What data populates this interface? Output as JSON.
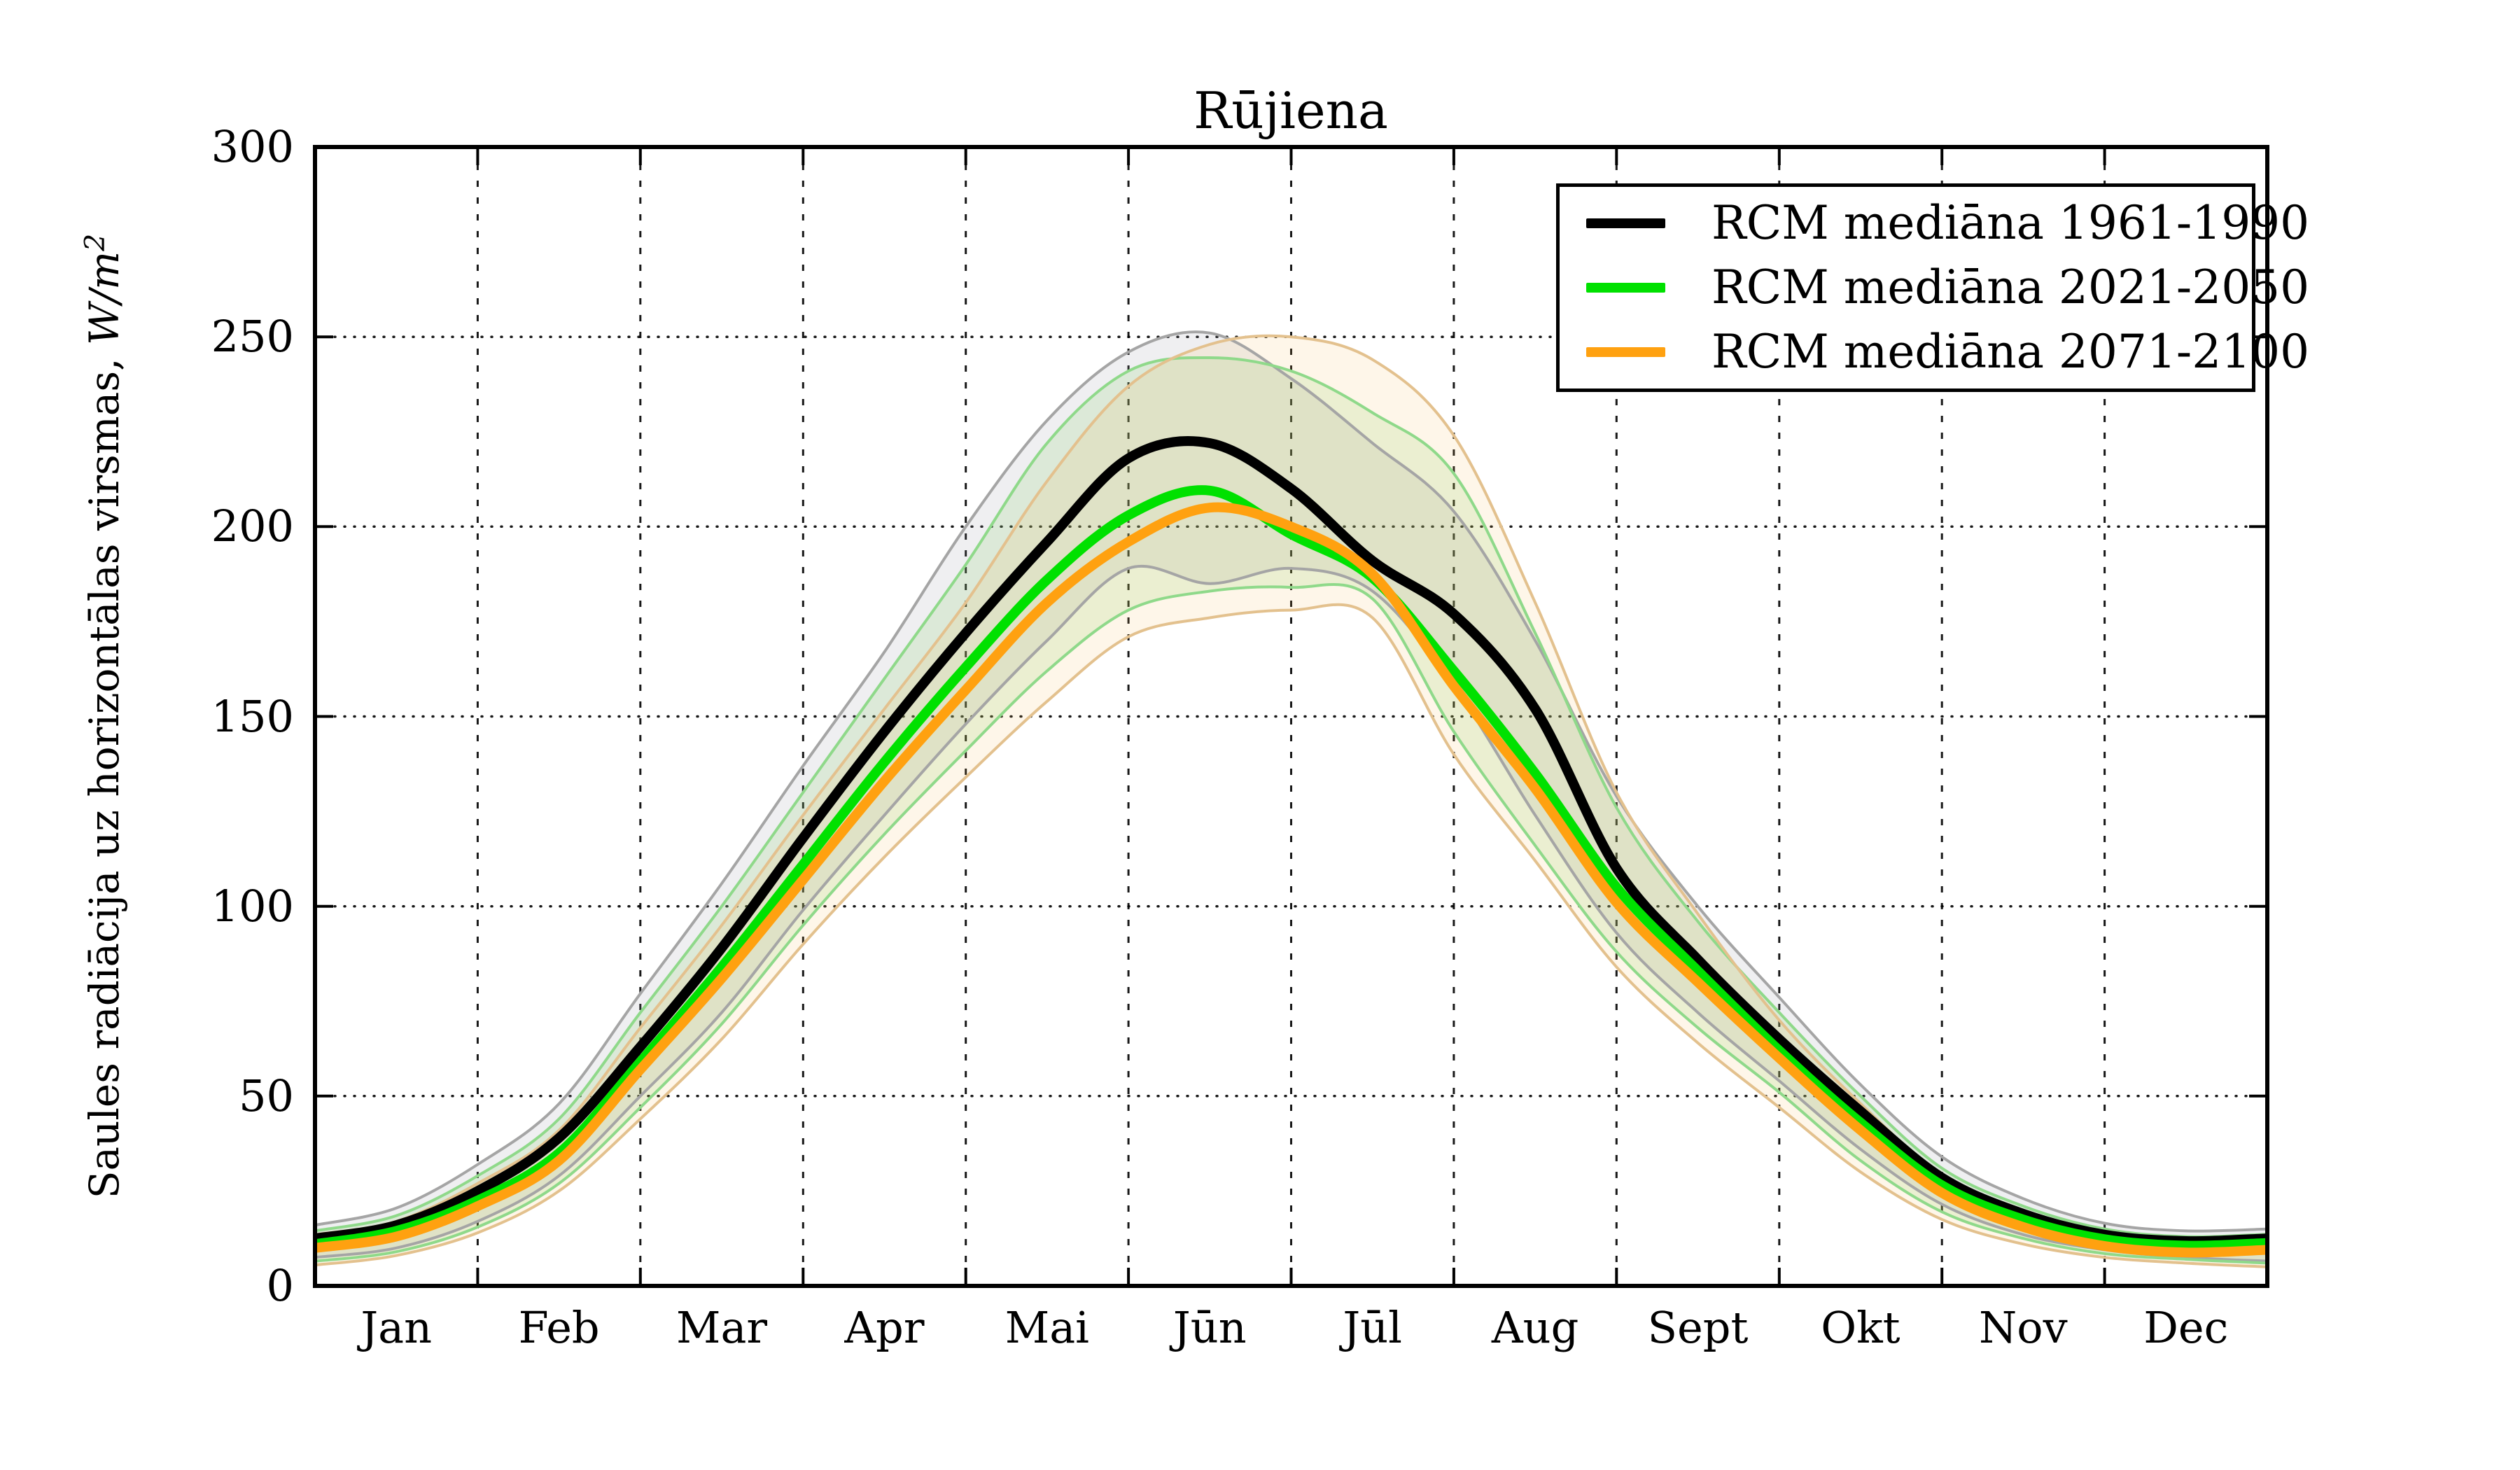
{
  "title": "Rūjiena",
  "ylabel": {
    "prefix": "Saules radiācija uz horizontālas virsmas, ",
    "math": "W/m",
    "sup": "2"
  },
  "legend": {
    "items": [
      {
        "label": "RCM mediāna 1961-1990",
        "color": "#000000"
      },
      {
        "label": "RCM mediāna 2021-2050",
        "color": "#00e100"
      },
      {
        "label": "RCM mediāna 2071-2100",
        "color": "#ffa110"
      }
    ]
  },
  "chart_data": {
    "type": "line",
    "title": "Rūjiena",
    "xlabel": "",
    "ylabel": "Saules radiācija uz horizontālas virsmas, W/m²",
    "ylim": [
      0,
      300
    ],
    "yticks": [
      0,
      50,
      100,
      150,
      200,
      250,
      300
    ],
    "x_months": [
      "Jan",
      "Feb",
      "Mar",
      "Apr",
      "Mai",
      "Jūn",
      "Jūl",
      "Aug",
      "Sept",
      "Okt",
      "Nov",
      "Dec"
    ],
    "grid": "dotted black gridlines at every month boundary and every 50 W/m²; legend upper right",
    "x_unit": "months, 0 = start of Jan, 12 = end of Dec, sampled every half month",
    "x": [
      0,
      0.5,
      1,
      1.5,
      2,
      2.5,
      3,
      3.5,
      4,
      4.5,
      5,
      5.5,
      6,
      6.5,
      7,
      7.5,
      8,
      8.5,
      9,
      9.5,
      10,
      10.5,
      11,
      11.5,
      12
    ],
    "series": [
      {
        "name": "RCM mediāna 1961-1990",
        "color": "#000000",
        "band_line_color": "#a5a5a5",
        "band_fill": "rgba(145,145,155,0.14)",
        "median": [
          12.5,
          16,
          25,
          39,
          63,
          89,
          118,
          146,
          172,
          196,
          218,
          222,
          210,
          191,
          177,
          152,
          110,
          86,
          65,
          46,
          28.5,
          19,
          13.5,
          11.8,
          12.5
        ],
        "lower": [
          7.5,
          10,
          17,
          29,
          50,
          72,
          99,
          124,
          148,
          170,
          189,
          185,
          189,
          183,
          158,
          124,
          93,
          72,
          54,
          36,
          21.5,
          13.5,
          9.5,
          7.5,
          6.5
        ],
        "upper": [
          16,
          20.5,
          32,
          48,
          77,
          106,
          137,
          167,
          200,
          228,
          246,
          251,
          239,
          222,
          204,
          170,
          129,
          100,
          76,
          53,
          34,
          23,
          16.5,
          14.5,
          15
        ]
      },
      {
        "name": "RCM mediāna 2021-2050",
        "color": "#00e100",
        "band_line_color": "#8fd98a",
        "band_fill": "rgba(125,205,90,0.16)",
        "median": [
          11,
          14.5,
          22.5,
          35,
          59,
          84,
          111,
          138,
          163,
          186,
          203,
          209.5,
          198,
          186.5,
          162,
          135,
          105,
          83,
          62,
          43,
          26.5,
          17.5,
          12.3,
          10.6,
          11.3
        ],
        "lower": [
          6.5,
          9,
          15.5,
          27,
          47,
          69,
          95,
          119,
          141,
          162,
          178,
          183,
          184,
          181,
          146,
          116,
          88,
          68,
          51,
          33,
          19.5,
          12.5,
          8.5,
          7,
          6
        ],
        "upper": [
          14.5,
          18.5,
          29,
          44,
          72,
          100,
          130,
          160,
          190,
          222,
          241,
          244.5,
          241,
          230,
          214,
          172,
          126,
          96,
          72,
          50,
          31,
          21,
          15,
          13,
          13.6
        ]
      },
      {
        "name": "RCM mediāna 2071-2100",
        "color": "#ffa110",
        "band_line_color": "#e3c18e",
        "band_fill": "rgba(246,178,75,0.12)",
        "median": [
          10,
          13,
          21,
          33,
          57,
          81,
          107,
          133,
          157,
          180,
          196,
          205,
          200,
          187.5,
          158,
          131,
          101,
          80,
          60,
          41,
          24.5,
          15.5,
          10.5,
          8.8,
          9.5
        ],
        "lower": [
          5.5,
          8,
          14,
          25,
          44,
          65,
          90,
          113,
          134,
          154,
          171,
          176,
          178,
          176,
          140,
          112,
          84,
          64,
          47,
          30,
          17.5,
          11,
          7.5,
          6,
          5
        ],
        "upper": [
          13.5,
          17,
          27,
          41,
          68,
          95,
          124,
          152,
          180,
          212,
          237,
          248,
          250,
          244,
          224,
          180,
          130,
          98,
          70,
          48,
          29,
          19,
          13.5,
          12,
          12.8
        ]
      }
    ]
  }
}
